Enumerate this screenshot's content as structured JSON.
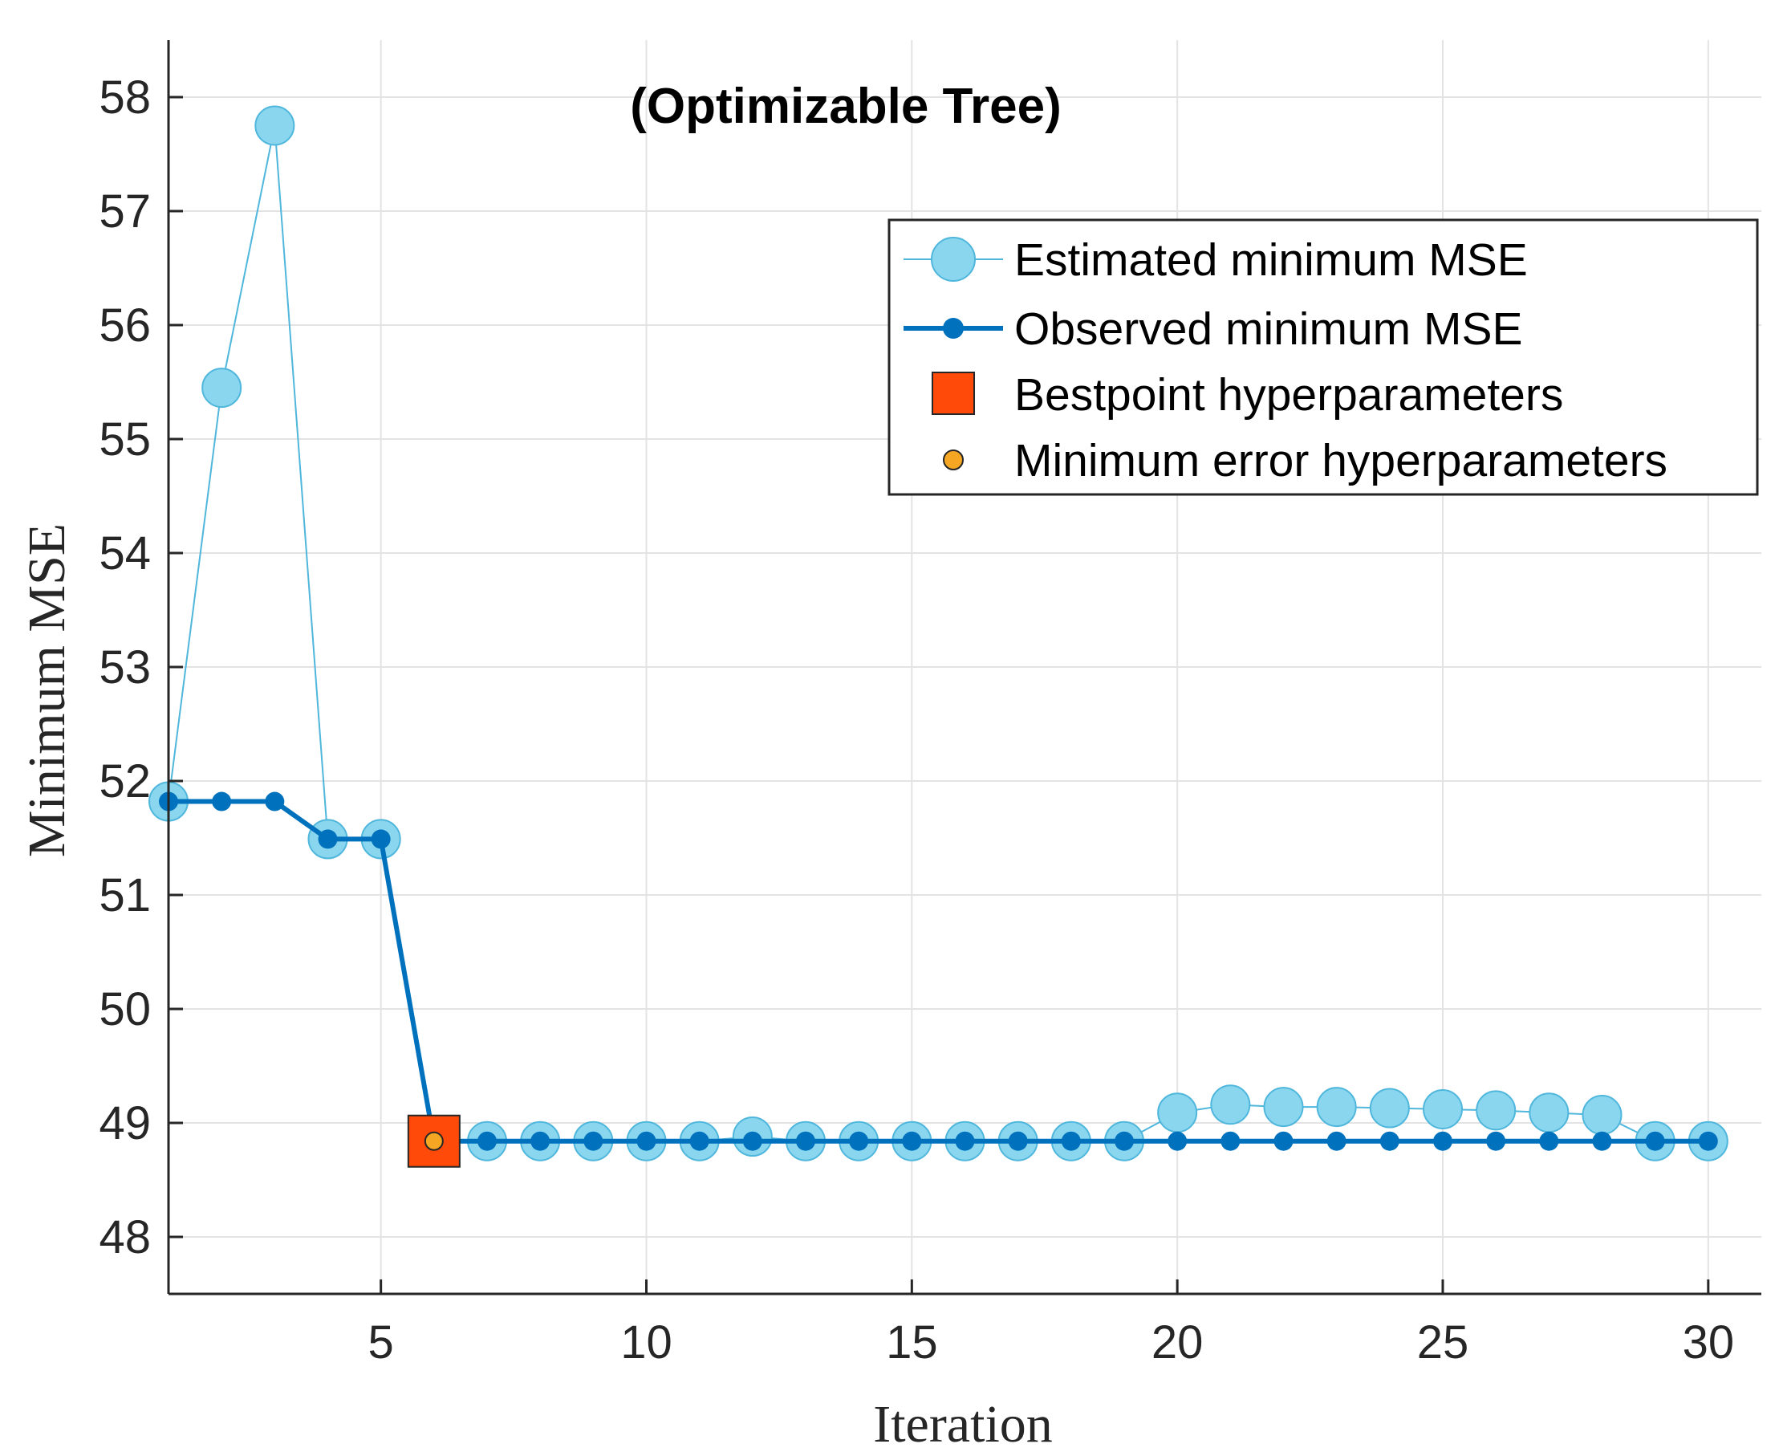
{
  "chart_data": {
    "type": "line",
    "title": "(Optimizable Tree)",
    "xlabel": "Iteration",
    "ylabel": "Minimum MSE",
    "xlim": [
      1,
      31
    ],
    "ylim": [
      47.5,
      58.5
    ],
    "x_ticks": [
      5,
      10,
      15,
      20,
      25,
      30
    ],
    "y_ticks": [
      48,
      49,
      50,
      51,
      52,
      53,
      54,
      55,
      56,
      57,
      58
    ],
    "x_tick_labels": [
      "5",
      "10",
      "15",
      "20",
      "25",
      "30"
    ],
    "y_tick_labels": [
      "48",
      "49",
      "50",
      "51",
      "52",
      "53",
      "54",
      "55",
      "56",
      "57",
      "58"
    ],
    "grid": true,
    "legend_position": "top-right",
    "series": [
      {
        "name": "Estimated minimum MSE",
        "color": "#8ad6ef",
        "edge_color": "#4fb6dc",
        "marker": "circle-large",
        "x": [
          1,
          2,
          3,
          4,
          5,
          6,
          7,
          8,
          9,
          10,
          11,
          12,
          13,
          14,
          15,
          16,
          17,
          18,
          19,
          20,
          21,
          22,
          23,
          24,
          25,
          26,
          27,
          28,
          29,
          30
        ],
        "values": [
          51.82,
          55.45,
          57.75,
          51.49,
          51.49,
          48.84,
          48.84,
          48.84,
          48.84,
          48.84,
          48.84,
          48.88,
          48.84,
          48.84,
          48.84,
          48.84,
          48.84,
          48.84,
          48.84,
          49.09,
          49.16,
          49.14,
          49.14,
          49.13,
          49.12,
          49.11,
          49.09,
          49.07,
          48.84,
          48.84
        ]
      },
      {
        "name": "Observed minimum MSE",
        "color": "#0072bd",
        "marker": "dot",
        "x": [
          1,
          2,
          3,
          4,
          5,
          6,
          7,
          8,
          9,
          10,
          11,
          12,
          13,
          14,
          15,
          16,
          17,
          18,
          19,
          20,
          21,
          22,
          23,
          24,
          25,
          26,
          27,
          28,
          29,
          30
        ],
        "values": [
          51.82,
          51.82,
          51.82,
          51.49,
          51.49,
          48.84,
          48.84,
          48.84,
          48.84,
          48.84,
          48.84,
          48.84,
          48.84,
          48.84,
          48.84,
          48.84,
          48.84,
          48.84,
          48.84,
          48.84,
          48.84,
          48.84,
          48.84,
          48.84,
          48.84,
          48.84,
          48.84,
          48.84,
          48.84,
          48.84
        ]
      }
    ],
    "bestpoint": {
      "name": "Bestpoint hyperparameters",
      "x": 6,
      "y": 48.84,
      "color": "#ff4a0a"
    },
    "min_error": {
      "name": "Minimum error hyperparameters",
      "x": 6,
      "y": 48.84,
      "color": "#f5a623"
    }
  }
}
